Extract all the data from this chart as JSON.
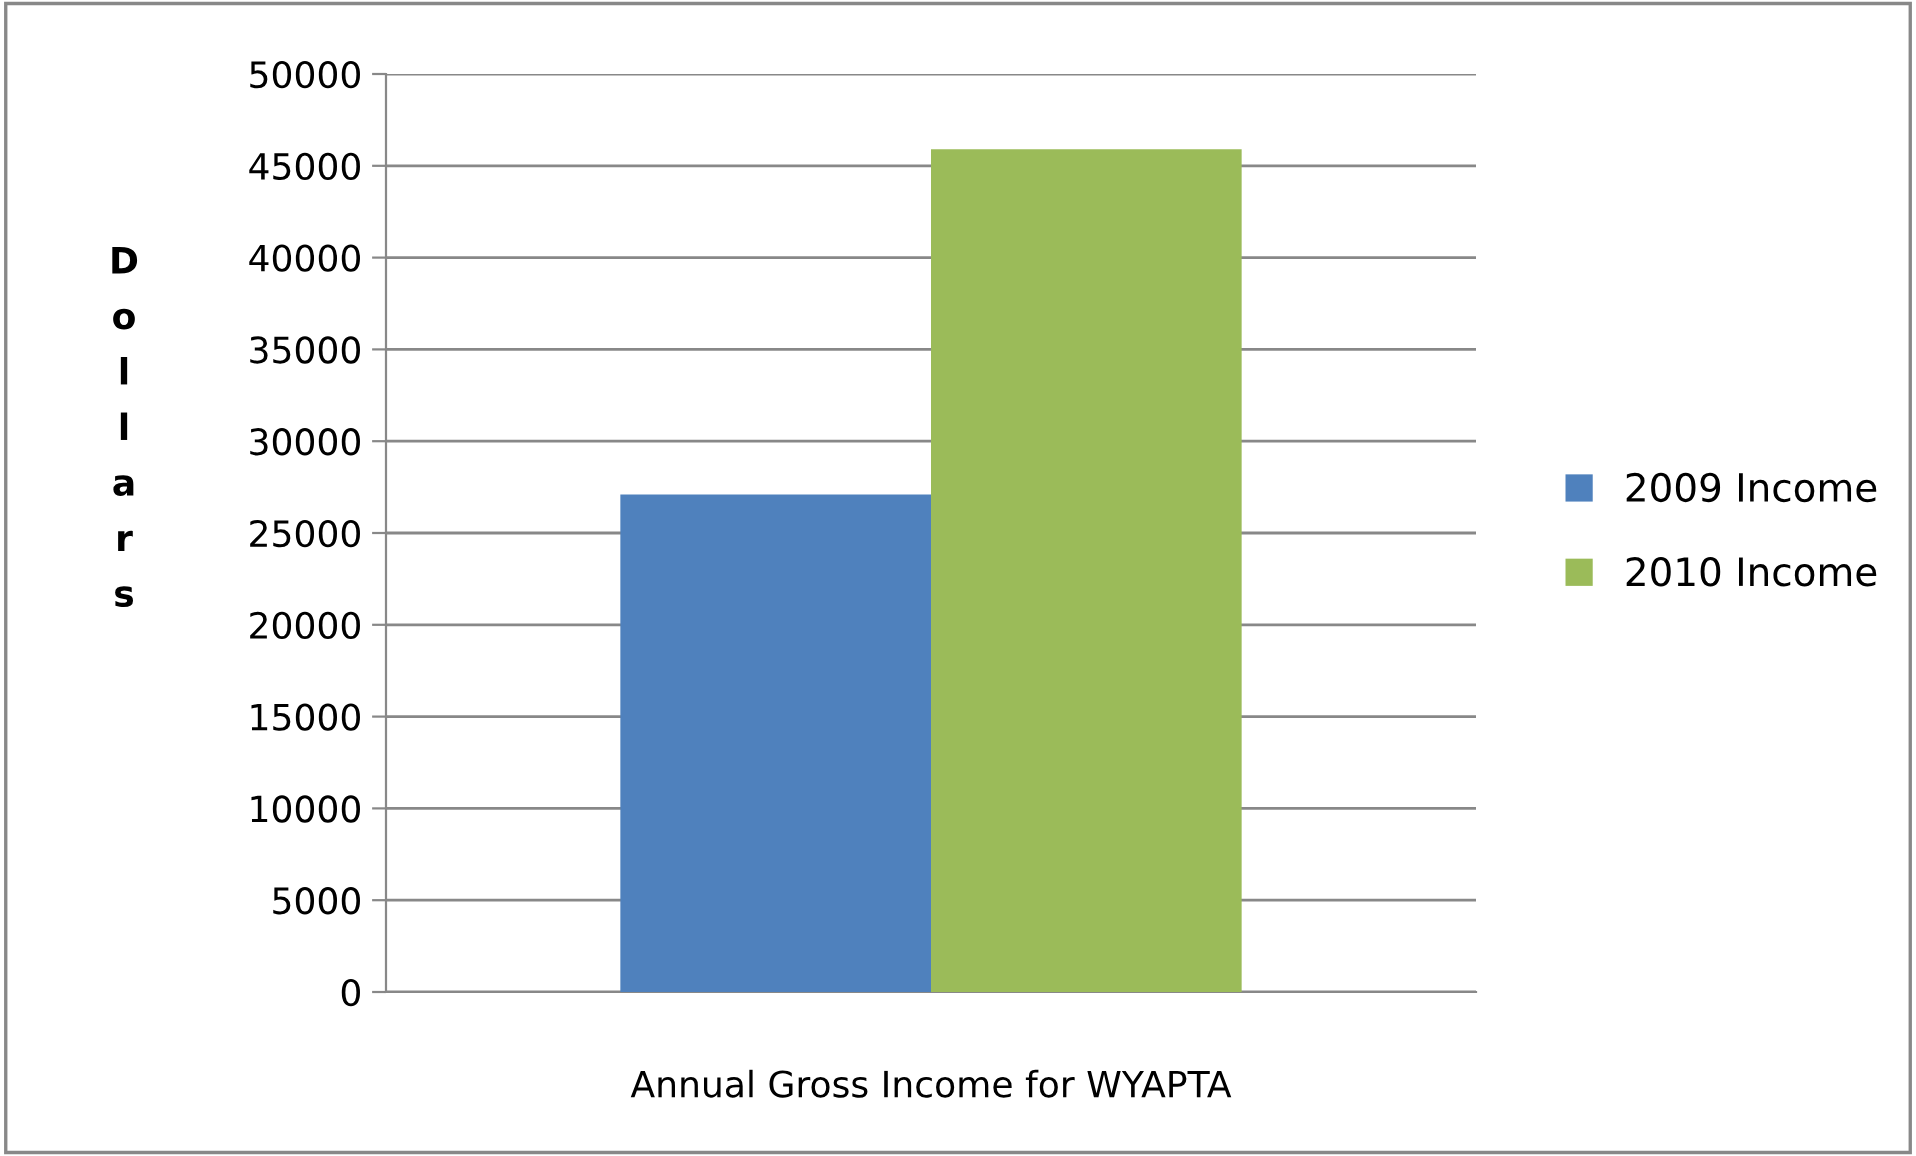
{
  "chart_data": {
    "type": "bar",
    "categories": [
      "Annual Gross Income for WYAPTA"
    ],
    "ylabel": "Dollars",
    "series": [
      {
        "name": "2009 Income",
        "color": "#4f81bd",
        "values": [
          27100
        ]
      },
      {
        "name": "2010 Income",
        "color": "#9bbb59",
        "values": [
          45900
        ]
      }
    ],
    "ylim": [
      0,
      50000
    ],
    "yticks": [
      0,
      5000,
      10000,
      15000,
      20000,
      25000,
      30000,
      35000,
      40000,
      45000,
      50000
    ],
    "grid": "y",
    "legend": "right"
  }
}
